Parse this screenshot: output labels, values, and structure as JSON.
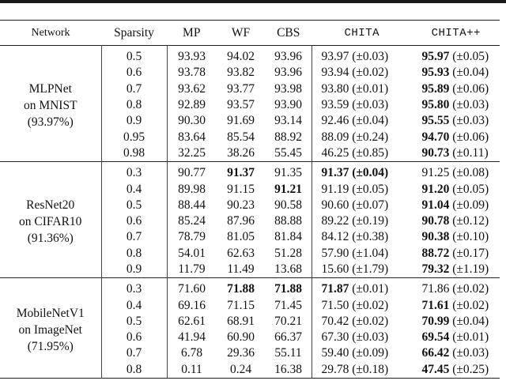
{
  "table": {
    "headers": {
      "network": "Network",
      "sparsity": "Sparsity",
      "mp": "MP",
      "wf": "WF",
      "cbs": "CBS",
      "chita": "CHITA",
      "chitapp": "CHITA++"
    },
    "groups": [
      {
        "network_line1": "MLPNet",
        "network_line2": "on MNIST",
        "network_line3": "(93.97%)",
        "rows": [
          {
            "sparsity": "0.5",
            "mp": "93.93",
            "wf": "94.02",
            "cbs": "93.96",
            "chita": "93.97",
            "chita_std": "(±0.03)",
            "chitapp": "95.97",
            "chitapp_std": "(±0.05)",
            "bold": "chitapp"
          },
          {
            "sparsity": "0.6",
            "mp": "93.78",
            "wf": "93.82",
            "cbs": "93.96",
            "chita": "93.94",
            "chita_std": "(±0.02)",
            "chitapp": "95.93",
            "chitapp_std": "(±0.04)",
            "bold": "chitapp"
          },
          {
            "sparsity": "0.7",
            "mp": "93.62",
            "wf": "93.77",
            "cbs": "93.98",
            "chita": "93.80",
            "chita_std": "(±0.01)",
            "chitapp": "95.89",
            "chitapp_std": "(±0.06)",
            "bold": "chitapp"
          },
          {
            "sparsity": "0.8",
            "mp": "92.89",
            "wf": "93.57",
            "cbs": "93.90",
            "chita": "93.59",
            "chita_std": "(±0.03)",
            "chitapp": "95.80",
            "chitapp_std": "(±0.03)",
            "bold": "chitapp"
          },
          {
            "sparsity": "0.9",
            "mp": "90.30",
            "wf": "91.69",
            "cbs": "93.14",
            "chita": "92.46",
            "chita_std": "(±0.04)",
            "chitapp": "95.55",
            "chitapp_std": "(±0.03)",
            "bold": "chitapp"
          },
          {
            "sparsity": "0.95",
            "mp": "83.64",
            "wf": "85.54",
            "cbs": "88.92",
            "chita": "88.09",
            "chita_std": "(±0.24)",
            "chitapp": "94.70",
            "chitapp_std": "(±0.06)",
            "bold": "chitapp"
          },
          {
            "sparsity": "0.98",
            "mp": "32.25",
            "wf": "38.26",
            "cbs": "55.45",
            "chita": "46.25",
            "chita_std": "(±0.85)",
            "chitapp": "90.73",
            "chitapp_std": "(±0.11)",
            "bold": "chitapp"
          }
        ]
      },
      {
        "network_line1": "ResNet20",
        "network_line2": "on CIFAR10",
        "network_line3": "(91.36%)",
        "rows": [
          {
            "sparsity": "0.3",
            "mp": "90.77",
            "wf": "91.37",
            "cbs": "91.35",
            "chita": "91.37",
            "chita_std": "(±0.04)",
            "chitapp": "91.25",
            "chitapp_std": "(±0.08)",
            "bold": "wf,chita,chita_std"
          },
          {
            "sparsity": "0.4",
            "mp": "89.98",
            "wf": "91.15",
            "cbs": "91.21",
            "chita": "91.19",
            "chita_std": "(±0.05)",
            "chitapp": "91.20",
            "chitapp_std": "(±0.05)",
            "bold": "cbs,chitapp"
          },
          {
            "sparsity": "0.5",
            "mp": "88.44",
            "wf": "90.23",
            "cbs": "90.58",
            "chita": "90.60",
            "chita_std": "(±0.07)",
            "chitapp": "91.04",
            "chitapp_std": "(±0.09)",
            "bold": "chitapp"
          },
          {
            "sparsity": "0.6",
            "mp": "85.24",
            "wf": "87.96",
            "cbs": "88.88",
            "chita": "89.22",
            "chita_std": "(±0.19)",
            "chitapp": "90.78",
            "chitapp_std": "(±0.12)",
            "bold": "chitapp"
          },
          {
            "sparsity": "0.7",
            "mp": "78.79",
            "wf": "81.05",
            "cbs": "81.84",
            "chita": "84.12",
            "chita_std": "(±0.38)",
            "chitapp": "90.38",
            "chitapp_std": "(±0.10)",
            "bold": "chitapp"
          },
          {
            "sparsity": "0.8",
            "mp": "54.01",
            "wf": "62.63",
            "cbs": "51.28",
            "chita": "57.90",
            "chita_std": "(±1.04)",
            "chitapp": "88.72",
            "chitapp_std": "(±0.17)",
            "bold": "chitapp"
          },
          {
            "sparsity": "0.9",
            "mp": "11.79",
            "wf": "11.49",
            "cbs": "13.68",
            "chita": "15.60",
            "chita_std": "(±1.79)",
            "chitapp": "79.32",
            "chitapp_std": "(±1.19)",
            "bold": "chitapp"
          }
        ]
      },
      {
        "network_line1": "MobileNetV1",
        "network_line2": "on ImageNet",
        "network_line3": "(71.95%)",
        "rows": [
          {
            "sparsity": "0.3",
            "mp": "71.60",
            "wf": "71.88",
            "cbs": "71.88",
            "chita": "71.87",
            "chita_std": "(±0.01)",
            "chitapp": "71.86",
            "chitapp_std": "(±0.02)",
            "bold": "wf,cbs,chita"
          },
          {
            "sparsity": "0.4",
            "mp": "69.16",
            "wf": "71.15",
            "cbs": "71.45",
            "chita": "71.50",
            "chita_std": "(±0.02)",
            "chitapp": "71.61",
            "chitapp_std": "(±0.02)",
            "bold": "chitapp"
          },
          {
            "sparsity": "0.5",
            "mp": "62.61",
            "wf": "68.91",
            "cbs": "70.21",
            "chita": "70.42",
            "chita_std": "(±0.02)",
            "chitapp": "70.99",
            "chitapp_std": "(±0.04)",
            "bold": "chitapp"
          },
          {
            "sparsity": "0.6",
            "mp": "41.94",
            "wf": "60.90",
            "cbs": "66.37",
            "chita": "67.30",
            "chita_std": "(±0.03)",
            "chitapp": "69.54",
            "chitapp_std": "(±0.01)",
            "bold": "chitapp"
          },
          {
            "sparsity": "0.7",
            "mp": "6.78",
            "wf": "29.36",
            "cbs": "55.11",
            "chita": "59.40",
            "chita_std": "(±0.09)",
            "chitapp": "66.42",
            "chitapp_std": "(±0.03)",
            "bold": "chitapp"
          },
          {
            "sparsity": "0.8",
            "mp": "0.11",
            "wf": "0.24",
            "cbs": "16.38",
            "chita": "29.78",
            "chita_std": "(±0.18)",
            "chitapp": "47.45",
            "chitapp_std": "(±0.25)",
            "bold": "chitapp"
          }
        ]
      }
    ]
  }
}
